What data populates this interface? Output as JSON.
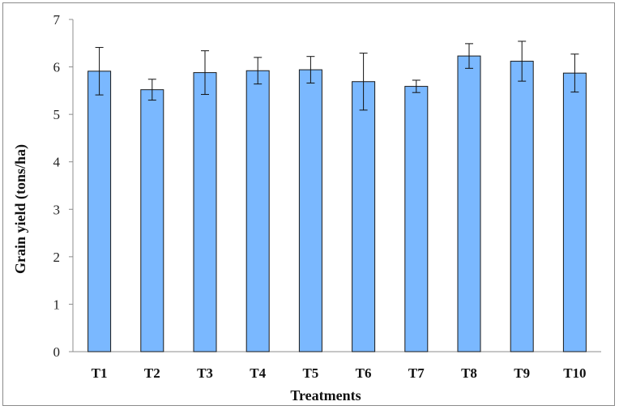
{
  "chart_data": {
    "type": "bar",
    "title": "",
    "xlabel": "Treatments",
    "ylabel": "Grain yield (tons/ha)",
    "categories": [
      "T1",
      "T2",
      "T3",
      "T4",
      "T5",
      "T6",
      "T7",
      "T8",
      "T9",
      "T10"
    ],
    "series": [
      {
        "values": [
          5.91,
          5.52,
          5.88,
          5.92,
          5.94,
          5.69,
          5.59,
          6.23,
          6.12,
          5.87
        ],
        "error": [
          0.5,
          0.22,
          0.46,
          0.28,
          0.28,
          0.6,
          0.13,
          0.26,
          0.42,
          0.4
        ],
        "color": "#7ab8ff"
      }
    ],
    "ylim": [
      0,
      7
    ],
    "yticks": [
      "0",
      "1",
      "2",
      "3",
      "4",
      "5",
      "6",
      "7"
    ],
    "grid": false,
    "bar_edge_color": "#1a1a1a",
    "axis_color": "#8c8c8c"
  }
}
